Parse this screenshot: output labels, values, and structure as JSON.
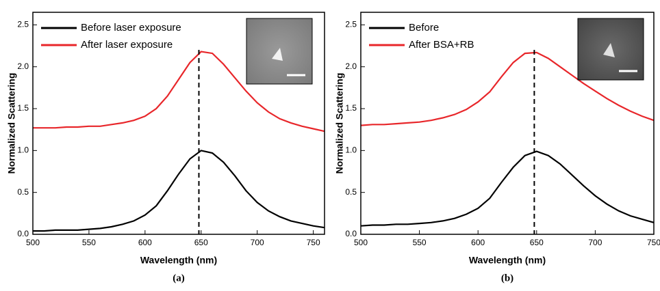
{
  "chart_data": [
    {
      "type": "line",
      "caption": "(a)",
      "xlabel": "Wavelength (nm)",
      "ylabel": "Normalized Scattering",
      "x": [
        500,
        510,
        520,
        530,
        540,
        550,
        560,
        570,
        580,
        590,
        600,
        610,
        620,
        630,
        640,
        650,
        660,
        670,
        680,
        690,
        700,
        710,
        720,
        730,
        740,
        750,
        760
      ],
      "series": [
        {
          "name": "Before laser exposure",
          "color": "#000000",
          "values": [
            0.04,
            0.04,
            0.05,
            0.05,
            0.05,
            0.06,
            0.07,
            0.09,
            0.12,
            0.16,
            0.23,
            0.34,
            0.52,
            0.72,
            0.9,
            1.0,
            0.97,
            0.86,
            0.7,
            0.52,
            0.38,
            0.28,
            0.21,
            0.16,
            0.13,
            0.1,
            0.08
          ]
        },
        {
          "name": "After laser exposure",
          "color": "#e8262a",
          "values": [
            1.27,
            1.27,
            1.27,
            1.28,
            1.28,
            1.29,
            1.29,
            1.31,
            1.33,
            1.36,
            1.41,
            1.5,
            1.65,
            1.85,
            2.05,
            2.18,
            2.16,
            2.03,
            1.87,
            1.71,
            1.57,
            1.46,
            1.38,
            1.33,
            1.29,
            1.26,
            1.23
          ]
        }
      ],
      "vline": 648,
      "xlim": [
        500,
        760
      ],
      "xticks": [
        500,
        550,
        600,
        650,
        700,
        750
      ],
      "ylim": [
        0,
        2.65
      ],
      "yticks": [
        {
          "value": 0,
          "label": "0.0"
        },
        0.5,
        {
          "value": 1,
          "label": "1.0"
        },
        1.5,
        {
          "value": 2,
          "label": "2.0"
        },
        2.5
      ],
      "legend": "upper left"
    },
    {
      "type": "line",
      "caption": "(b)",
      "xlabel": "Wavelength (nm)",
      "ylabel": "Normalized Scattering",
      "x": [
        500,
        510,
        520,
        530,
        540,
        550,
        560,
        570,
        580,
        590,
        600,
        610,
        620,
        630,
        640,
        650,
        660,
        670,
        680,
        690,
        700,
        710,
        720,
        730,
        740,
        750
      ],
      "series": [
        {
          "name": "Before",
          "color": "#000000",
          "values": [
            0.1,
            0.11,
            0.11,
            0.12,
            0.12,
            0.13,
            0.14,
            0.16,
            0.19,
            0.24,
            0.31,
            0.43,
            0.62,
            0.8,
            0.94,
            0.99,
            0.94,
            0.84,
            0.71,
            0.58,
            0.46,
            0.36,
            0.28,
            0.22,
            0.18,
            0.14
          ]
        },
        {
          "name": "After BSA+RB",
          "color": "#e8262a",
          "values": [
            1.3,
            1.31,
            1.31,
            1.32,
            1.33,
            1.34,
            1.36,
            1.39,
            1.43,
            1.49,
            1.58,
            1.7,
            1.88,
            2.05,
            2.16,
            2.17,
            2.1,
            2.0,
            1.9,
            1.8,
            1.71,
            1.62,
            1.54,
            1.47,
            1.41,
            1.36
          ]
        }
      ],
      "vline": 648,
      "xlim": [
        500,
        750
      ],
      "xticks": [
        500,
        550,
        600,
        650,
        700,
        750
      ],
      "ylim": [
        0,
        2.65
      ],
      "yticks": [
        {
          "value": 0,
          "label": "0.0"
        },
        0.5,
        {
          "value": 1,
          "label": "1.0"
        },
        1.5,
        {
          "value": 2,
          "label": "2.0"
        },
        2.5
      ],
      "legend": "upper left"
    }
  ]
}
